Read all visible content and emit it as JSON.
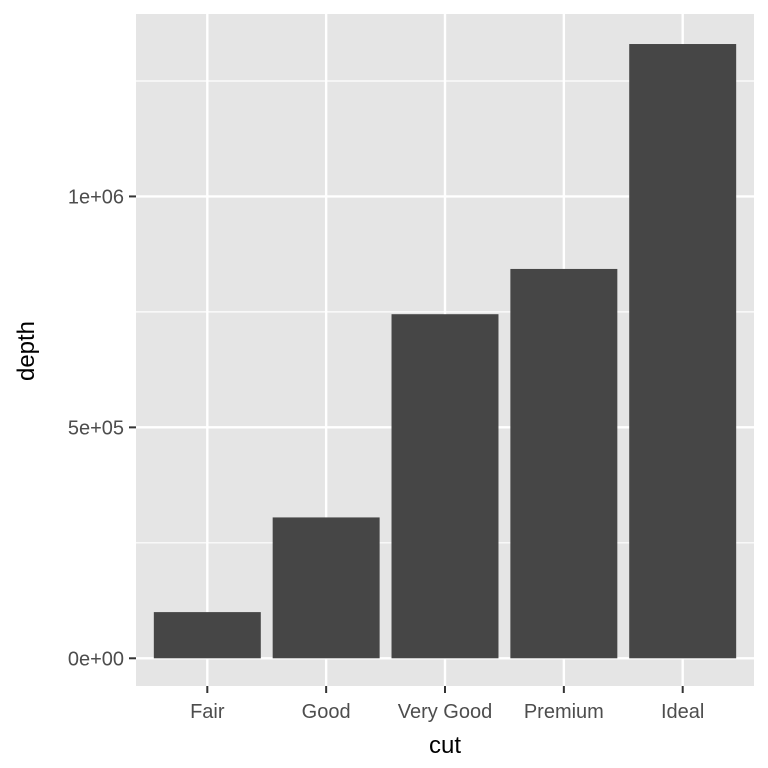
{
  "chart_data": {
    "type": "bar",
    "title": "",
    "xlabel": "cut",
    "ylabel": "depth",
    "categories": [
      "Fair",
      "Good",
      "Very Good",
      "Premium",
      "Ideal"
    ],
    "values": [
      100000,
      305000,
      745000,
      843000,
      1330000
    ],
    "ylim": [
      -60000,
      1395000
    ],
    "y_ticks": [
      0,
      500000,
      1000000
    ],
    "y_tick_labels": [
      "0e+00",
      "5e+05",
      "1e+06"
    ],
    "y_minor_ticks": [
      250000,
      750000,
      1250000
    ],
    "grid": true,
    "legend": "none"
  },
  "colors": {
    "panel_background": "#e5e5e5",
    "grid": "#ffffff",
    "bar_fill": "#464646",
    "tick_text": "#4d4d4d",
    "title_text": "#000000"
  }
}
